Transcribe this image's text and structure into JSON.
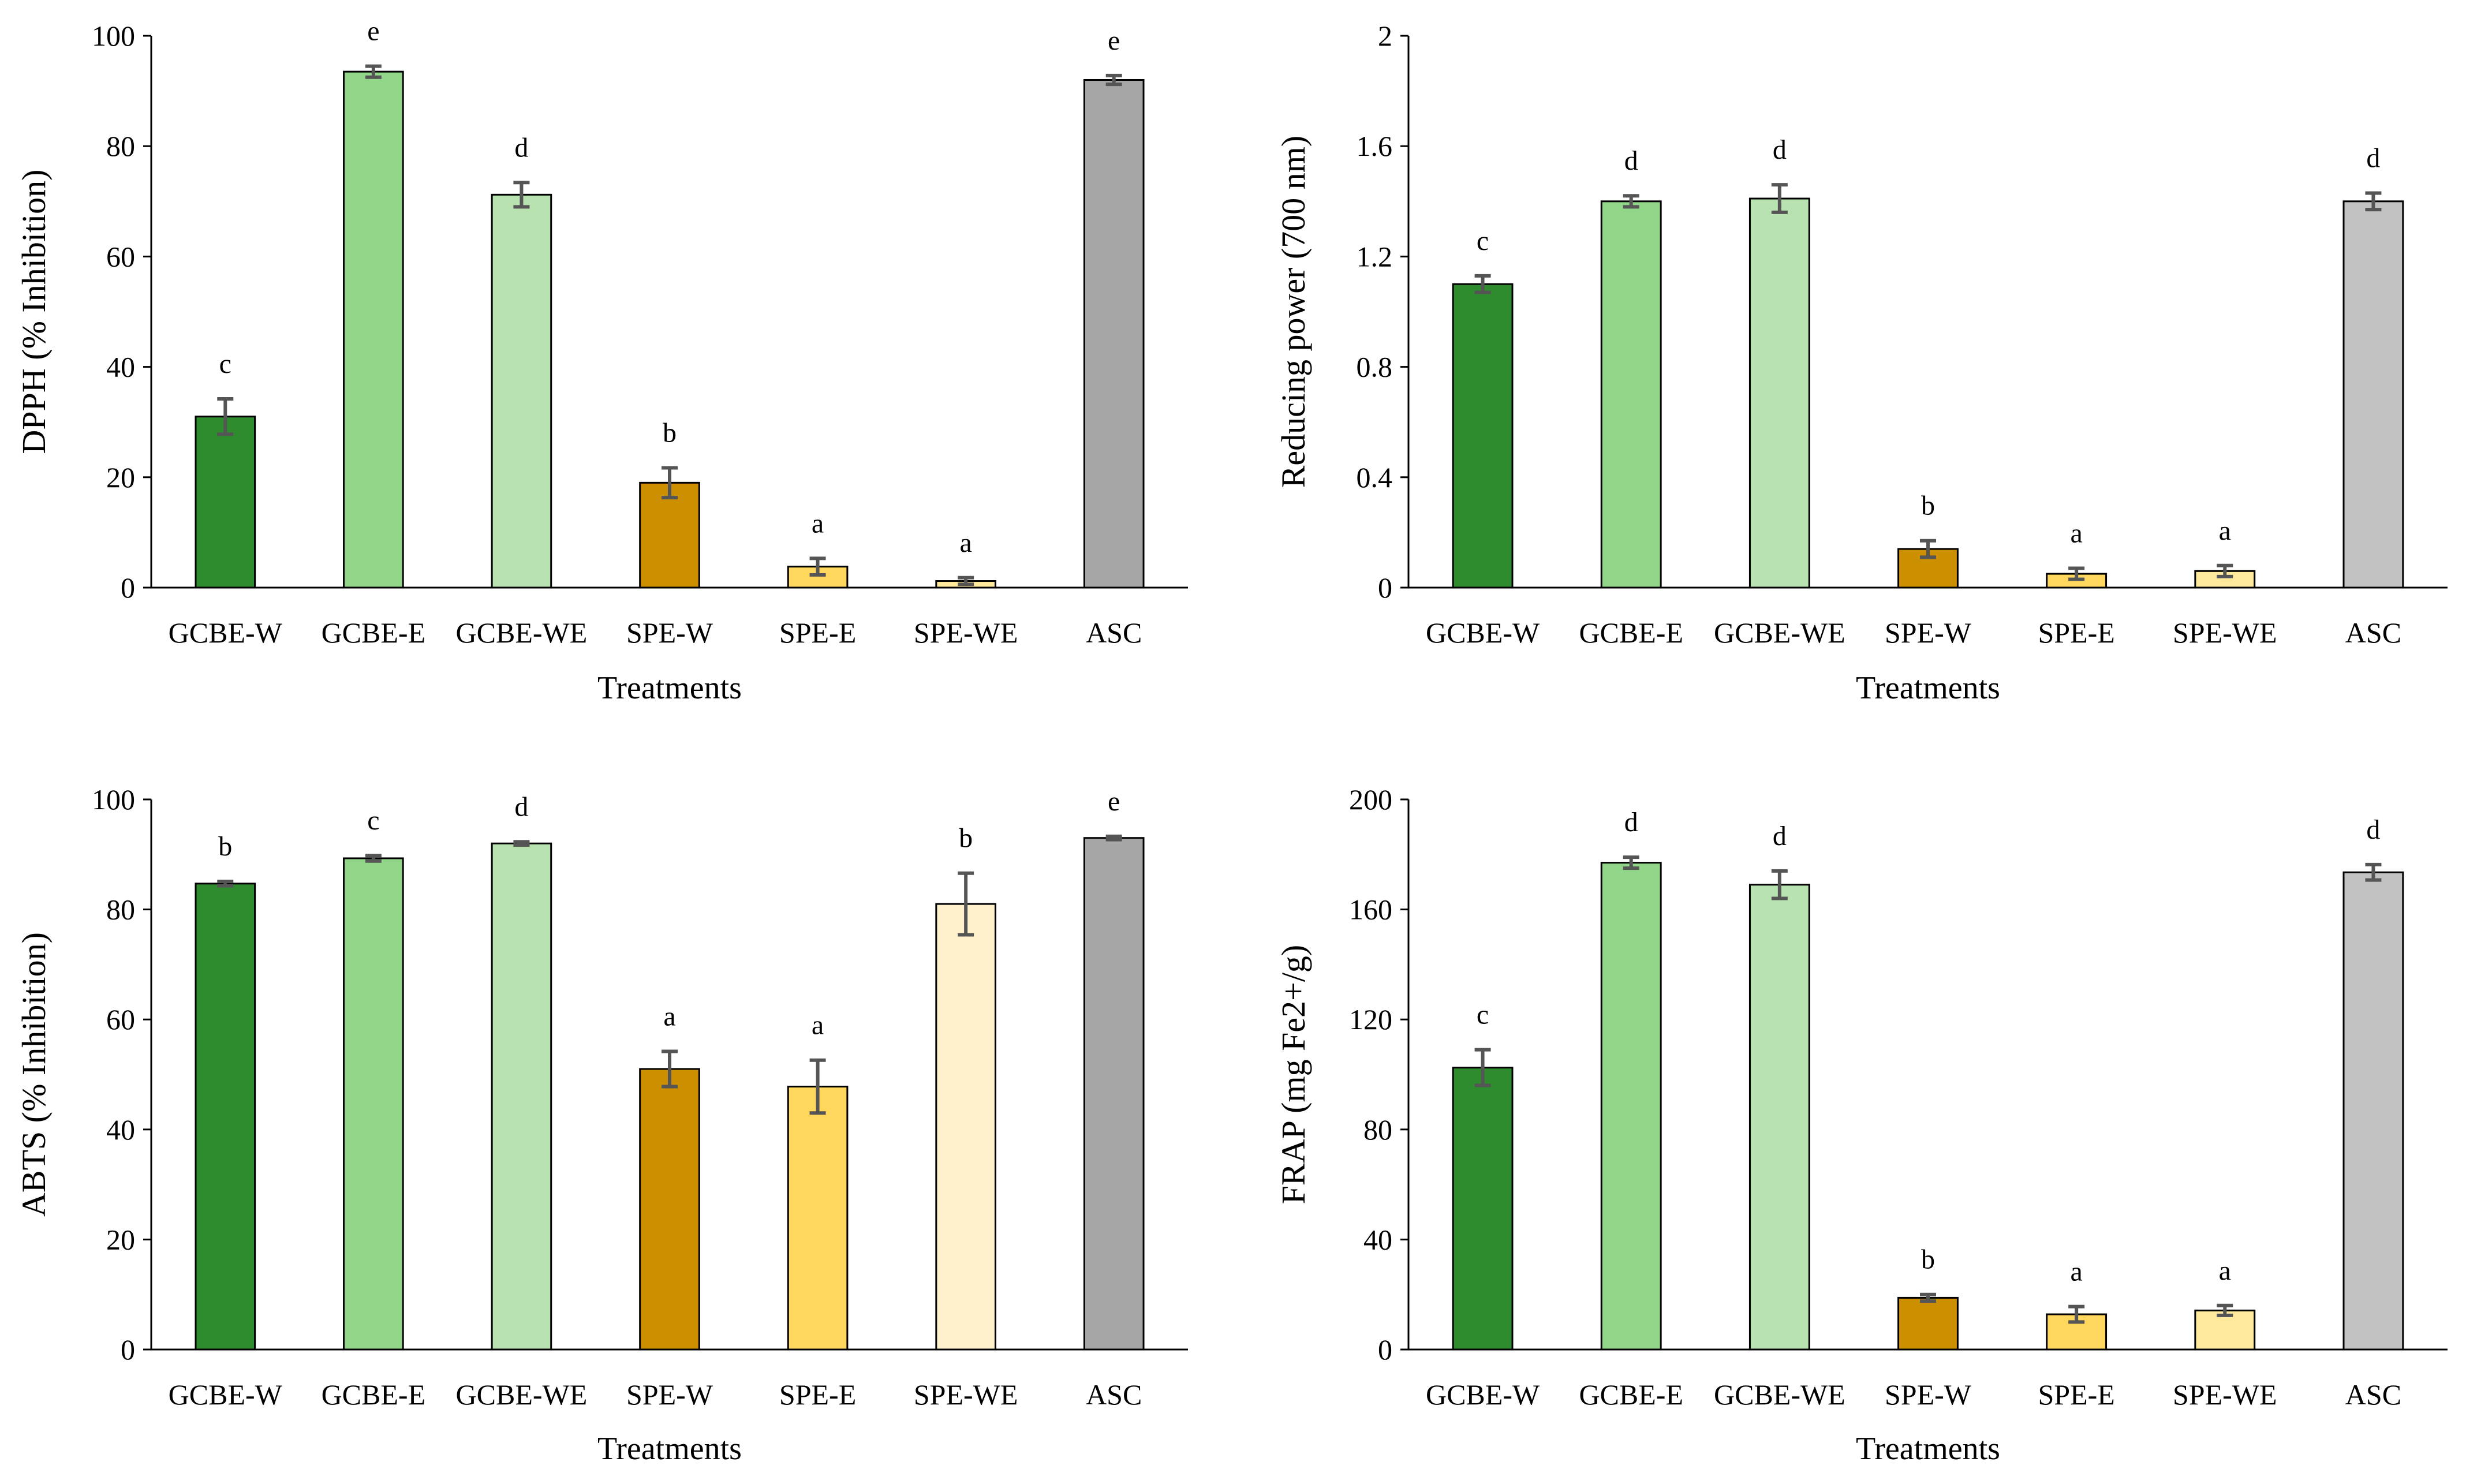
{
  "chart_data": [
    {
      "type": "bar",
      "title": "",
      "xlabel": "Treatments",
      "ylabel": "DPPH (% Inhibition)",
      "ylim": [
        0,
        100
      ],
      "yticks": [
        "0",
        "20",
        "40",
        "60",
        "80",
        "100"
      ],
      "categories": [
        "GCBE-W",
        "GCBE-E",
        "GCBE-WE",
        "SPE-W",
        "SPE-E",
        "SPE-WE",
        "ASC"
      ],
      "values": [
        31,
        93.5,
        71.2,
        19,
        3.8,
        1.2,
        92
      ],
      "errors": [
        3.2,
        1.0,
        2.2,
        2.7,
        1.5,
        0.6,
        0.8
      ],
      "letters": [
        "c",
        "e",
        "d",
        "b",
        "a",
        "a",
        "e"
      ],
      "colors": [
        "#2e8b2e",
        "#92d689",
        "#b8e2b0",
        "#cc8f00",
        "#ffd75c",
        "#ffe99a",
        "#a6a6a6"
      ]
    },
    {
      "type": "bar",
      "title": "",
      "xlabel": "Treatments",
      "ylabel": "Reducing power (700 nm)",
      "ylim": [
        0,
        2
      ],
      "yticks": [
        "0",
        "0.4",
        "0.8",
        "1.2",
        "1.6",
        "2"
      ],
      "categories": [
        "GCBE-W",
        "GCBE-E",
        "GCBE-WE",
        "SPE-W",
        "SPE-E",
        "SPE-WE",
        "ASC"
      ],
      "values": [
        1.1,
        1.4,
        1.41,
        0.14,
        0.05,
        0.06,
        1.4
      ],
      "errors": [
        0.03,
        0.02,
        0.05,
        0.03,
        0.02,
        0.02,
        0.03
      ],
      "letters": [
        "c",
        "d",
        "d",
        "b",
        "a",
        "a",
        "d"
      ],
      "colors": [
        "#2e8b2e",
        "#92d689",
        "#b8e2b0",
        "#cc8f00",
        "#ffd75c",
        "#ffe99a",
        "#c2c2c2"
      ]
    },
    {
      "type": "bar",
      "title": "",
      "xlabel": "Treatments",
      "ylabel": "ABTS (% Inhibition)",
      "ylim": [
        0,
        100
      ],
      "yticks": [
        "0",
        "20",
        "40",
        "60",
        "80",
        "100"
      ],
      "categories": [
        "GCBE-W",
        "GCBE-E",
        "GCBE-WE",
        "SPE-W",
        "SPE-E",
        "SPE-WE",
        "ASC"
      ],
      "values": [
        84.7,
        89.3,
        92,
        51,
        47.8,
        81,
        93
      ],
      "errors": [
        0.4,
        0.5,
        0.3,
        3.2,
        4.8,
        5.6,
        0.3
      ],
      "letters": [
        "b",
        "c",
        "d",
        "a",
        "a",
        "b",
        "e"
      ],
      "colors": [
        "#2e8b2e",
        "#92d689",
        "#b8e2b0",
        "#cc8f00",
        "#ffd75c",
        "#fff1cc",
        "#a6a6a6"
      ]
    },
    {
      "type": "bar",
      "title": "",
      "xlabel": "Treatments",
      "ylabel": "FRAP (mg Fe2+/g)",
      "ylim": [
        0,
        200
      ],
      "yticks": [
        "0",
        "40",
        "80",
        "120",
        "160",
        "200"
      ],
      "categories": [
        "GCBE-W",
        "GCBE-E",
        "GCBE-WE",
        "SPE-W",
        "SPE-E",
        "SPE-WE",
        "ASC"
      ],
      "values": [
        102.5,
        177,
        169,
        18.8,
        12.8,
        14.2,
        173.5
      ],
      "errors": [
        6.5,
        2.0,
        5.0,
        1.2,
        2.8,
        1.8,
        2.8
      ],
      "letters": [
        "c",
        "d",
        "d",
        "b",
        "a",
        "a",
        "d"
      ],
      "colors": [
        "#2e8b2e",
        "#92d689",
        "#b8e2b0",
        "#cc8f00",
        "#ffd75c",
        "#ffe99a",
        "#c2c2c2"
      ]
    }
  ]
}
